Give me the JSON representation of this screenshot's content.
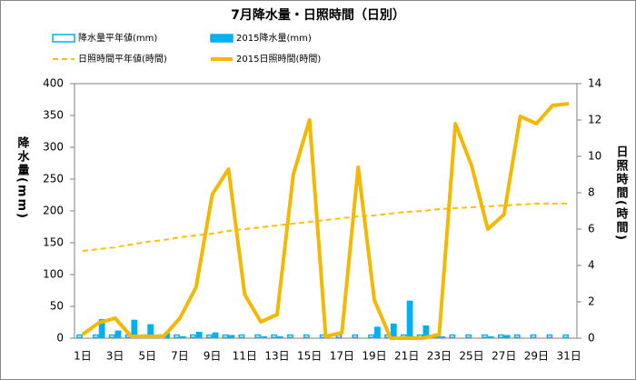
{
  "chart_data": {
    "type": "bar-line",
    "title": "7月降水量・日照時間（日別）",
    "y_label": "降水量(mm)",
    "y2_label": "日照時間(時間)",
    "categories": [
      "1日",
      null,
      "3日",
      null,
      "5日",
      null,
      "7日",
      null,
      "9日",
      null,
      "11日",
      null,
      "13日",
      null,
      "15日",
      null,
      "17日",
      null,
      "19日",
      null,
      "21日",
      null,
      "23日",
      null,
      "25日",
      null,
      "27日",
      null,
      "29日",
      null,
      "31日"
    ],
    "ylim": [
      0,
      400
    ],
    "yticks": [
      0,
      50,
      100,
      150,
      200,
      250,
      300,
      350,
      400
    ],
    "y2lim": [
      0,
      14
    ],
    "y2ticks": [
      0,
      2,
      4,
      6,
      8,
      10,
      12,
      14
    ],
    "grid": false,
    "legend": "top",
    "series": [
      {
        "name": "降水量平年値(mm)",
        "type": "bar",
        "style": "hollow",
        "color": "#00b0f0",
        "values": [
          6,
          6,
          6,
          6,
          6,
          6,
          6,
          6,
          6,
          6,
          6,
          6,
          6,
          6,
          6,
          6,
          6,
          6,
          6,
          6,
          6,
          6,
          6,
          6,
          6,
          6,
          6,
          6,
          6,
          6,
          6
        ]
      },
      {
        "name": "2015降水量(mm)",
        "type": "bar",
        "style": "solid",
        "color": "#00b0f0",
        "values": [
          0,
          30,
          12,
          29,
          22,
          8,
          3,
          10,
          9,
          5,
          0,
          3,
          3,
          0,
          0,
          0,
          0,
          0,
          18,
          23,
          59,
          20,
          3,
          0,
          0,
          3,
          5,
          0,
          0,
          0,
          0
        ]
      },
      {
        "name": "日照時間平年値(時間)",
        "type": "line",
        "style": "dashed",
        "axis": "y2",
        "color": "#ffc000",
        "values": [
          4.8,
          4.9,
          5.0,
          5.15,
          5.3,
          5.4,
          5.55,
          5.65,
          5.75,
          5.9,
          6.0,
          6.1,
          6.2,
          6.3,
          6.4,
          6.5,
          6.6,
          6.7,
          6.75,
          6.85,
          6.95,
          7.0,
          7.1,
          7.15,
          7.2,
          7.25,
          7.3,
          7.35,
          7.4,
          7.4,
          7.4
        ]
      },
      {
        "name": "2015日照時間(時間)",
        "type": "line",
        "style": "solid",
        "axis": "y2",
        "color": "#f5b800",
        "values": [
          0.2,
          0.85,
          1.1,
          0.1,
          0.1,
          0.1,
          1.1,
          2.8,
          7.9,
          9.3,
          2.4,
          0.9,
          1.3,
          9.0,
          12.0,
          0.1,
          0.3,
          9.4,
          2.1,
          0,
          0,
          0,
          0.2,
          11.8,
          9.5,
          6.0,
          6.8,
          12.2,
          11.8,
          12.8,
          12.9
        ]
      }
    ]
  }
}
